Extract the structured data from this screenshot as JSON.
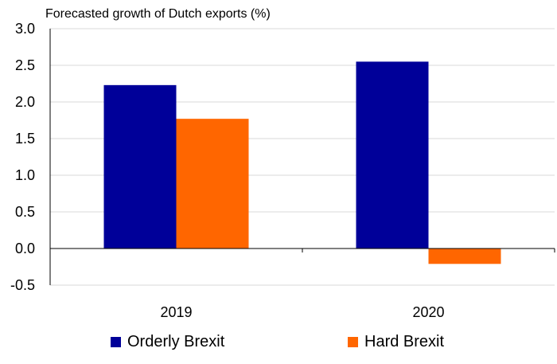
{
  "chart_data": {
    "type": "bar",
    "title": "Forecasted growth of Dutch exports (%)",
    "categories": [
      "2019",
      "2020"
    ],
    "series": [
      {
        "name": "Orderly Brexit",
        "color": "#000099",
        "values": [
          2.23,
          2.55
        ]
      },
      {
        "name": "Hard Brexit",
        "color": "#ff6600",
        "values": [
          1.77,
          -0.21
        ]
      }
    ],
    "ylim": [
      -0.5,
      3.0
    ],
    "yticks": [
      "-0.5",
      "0.0",
      "0.5",
      "1.0",
      "1.5",
      "2.0",
      "2.5",
      "3.0"
    ],
    "grid": true,
    "legend_position": "bottom"
  }
}
